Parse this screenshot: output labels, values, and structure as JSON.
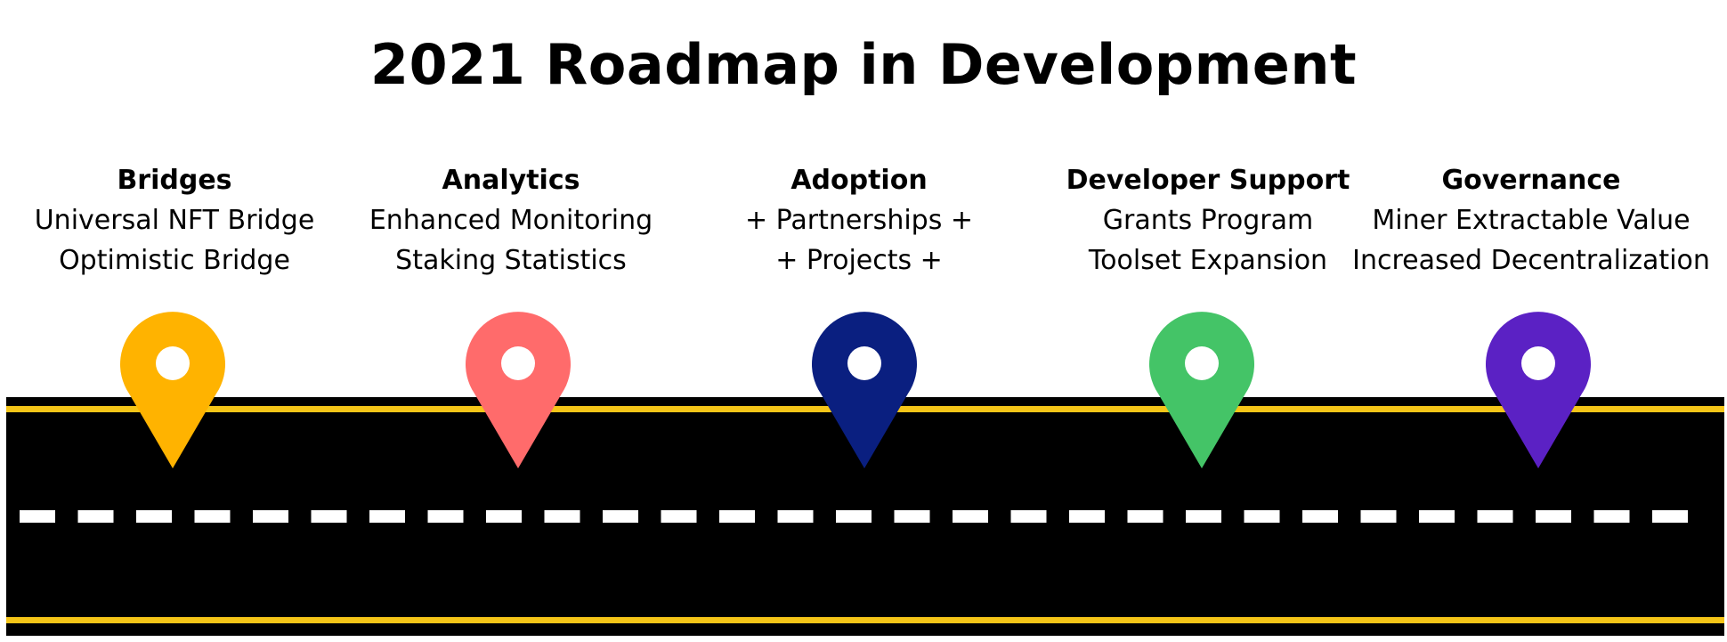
{
  "title": "2021 Roadmap in Development",
  "colors": {
    "road": "#000000",
    "edge_line": "#f5c518",
    "center_dash": "#ffffff"
  },
  "milestones": [
    {
      "heading": "Bridges",
      "lines": [
        "Universal NFT Bridge",
        "Optimistic Bridge"
      ],
      "pin_color": "#ffb300",
      "icon": "map-pin-icon"
    },
    {
      "heading": "Analytics",
      "lines": [
        "Enhanced Monitoring",
        "Staking Statistics"
      ],
      "pin_color": "#ff6b6b",
      "icon": "map-pin-icon"
    },
    {
      "heading": "Adoption",
      "lines": [
        "+ Partnerships +",
        "+ Projects +"
      ],
      "pin_color": "#0a1f80",
      "icon": "map-pin-icon"
    },
    {
      "heading": "Developer Support",
      "lines": [
        "Grants Program",
        "Toolset Expansion"
      ],
      "pin_color": "#44c467",
      "icon": "map-pin-icon"
    },
    {
      "heading": "Governance",
      "lines": [
        "Miner Extractable Value",
        "Increased Decentralization"
      ],
      "pin_color": "#5b21c4",
      "icon": "map-pin-icon"
    }
  ]
}
